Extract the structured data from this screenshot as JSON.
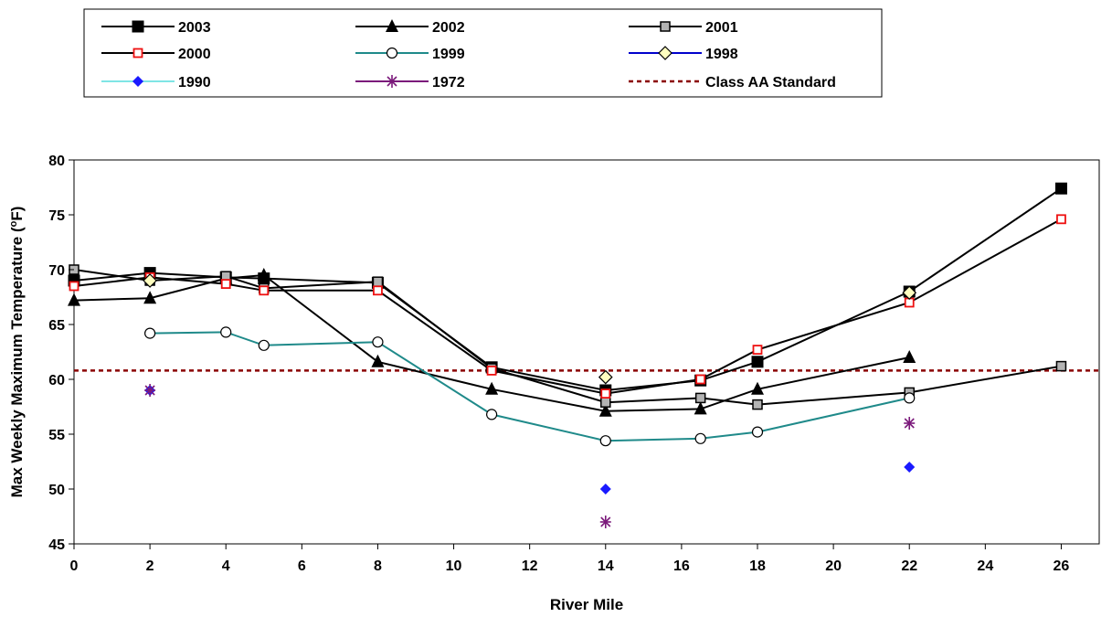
{
  "chart_data": {
    "type": "line",
    "title": "",
    "xlabel": "River Mile",
    "ylabel_main": "Max Weekly Maximum Temperature (",
    "ylabel_sup": "o",
    "ylabel_tail": "F)",
    "xlim": [
      0,
      27
    ],
    "ylim": [
      45,
      80
    ],
    "xticks": [
      0,
      2,
      4,
      6,
      8,
      10,
      12,
      14,
      16,
      18,
      20,
      22,
      24,
      26
    ],
    "yticks": [
      45,
      50,
      55,
      60,
      65,
      70,
      75,
      80
    ],
    "grid": false,
    "legend_position": "top",
    "series": [
      {
        "name": "2003",
        "color": "#000000",
        "line": true,
        "marker": "filled-square",
        "points": [
          [
            0,
            69.0
          ],
          [
            2,
            69.7
          ],
          [
            4,
            69.3
          ],
          [
            5,
            69.2
          ],
          [
            8,
            68.8
          ],
          [
            11,
            61.1
          ],
          [
            14,
            59.0
          ],
          [
            16.5,
            59.9
          ],
          [
            18,
            61.6
          ],
          [
            22,
            68.0
          ],
          [
            26,
            77.4
          ]
        ]
      },
      {
        "name": "2002",
        "color": "#000000",
        "line": true,
        "marker": "filled-triangle",
        "points": [
          [
            0,
            67.2
          ],
          [
            2,
            67.4
          ],
          [
            4,
            69.2
          ],
          [
            5,
            69.5
          ],
          [
            8,
            61.6
          ],
          [
            11,
            59.1
          ],
          [
            14,
            57.1
          ],
          [
            16.5,
            57.3
          ],
          [
            18,
            59.1
          ],
          [
            22,
            62.0
          ]
        ]
      },
      {
        "name": "2001",
        "color": "#000000",
        "line": true,
        "marker": "gray-square",
        "points": [
          [
            0,
            70.0
          ],
          [
            2,
            69.0
          ],
          [
            4,
            69.4
          ],
          [
            5,
            68.3
          ],
          [
            8,
            68.9
          ],
          [
            11,
            61.0
          ],
          [
            14,
            57.9
          ],
          [
            16.5,
            58.3
          ],
          [
            18,
            57.7
          ],
          [
            22,
            58.8
          ],
          [
            26,
            61.2
          ]
        ]
      },
      {
        "name": "2000",
        "color": "#000000",
        "line": true,
        "marker": "red-open-square",
        "points": [
          [
            0,
            68.5
          ],
          [
            2,
            69.3
          ],
          [
            4,
            68.7
          ],
          [
            5,
            68.1
          ],
          [
            8,
            68.1
          ],
          [
            11,
            60.8
          ],
          [
            14,
            58.7
          ],
          [
            16.5,
            60.0
          ],
          [
            18,
            62.7
          ],
          [
            22,
            67.0
          ],
          [
            26,
            74.6
          ]
        ]
      },
      {
        "name": "1999",
        "color": "#1f8a8a",
        "line": true,
        "marker": "open-circle",
        "points": [
          [
            2,
            64.2
          ],
          [
            4,
            64.3
          ],
          [
            5,
            63.1
          ],
          [
            8,
            63.4
          ],
          [
            11,
            56.8
          ],
          [
            14,
            54.4
          ],
          [
            16.5,
            54.6
          ],
          [
            18,
            55.2
          ],
          [
            22,
            58.3
          ]
        ]
      },
      {
        "name": "1998",
        "color": "#0000cc",
        "line": false,
        "marker": "yellow-diamond",
        "points": [
          [
            2,
            69.0
          ],
          [
            14,
            60.2
          ],
          [
            22,
            67.9
          ]
        ]
      },
      {
        "name": "1990",
        "color": "#1a1aff",
        "line": false,
        "marker": "blue-diamond",
        "points": [
          [
            2,
            59.0
          ],
          [
            14,
            50.0
          ],
          [
            22,
            52.0
          ]
        ]
      },
      {
        "name": "1972",
        "color": "#7b1a7b",
        "line": false,
        "marker": "asterisk",
        "points": [
          [
            2,
            59.0
          ],
          [
            14,
            47.0
          ],
          [
            22,
            56.0
          ]
        ]
      },
      {
        "name": "Class AA Standard",
        "color": "#8b0000",
        "line": "dashed",
        "marker": "none",
        "value": 60.8
      }
    ]
  }
}
